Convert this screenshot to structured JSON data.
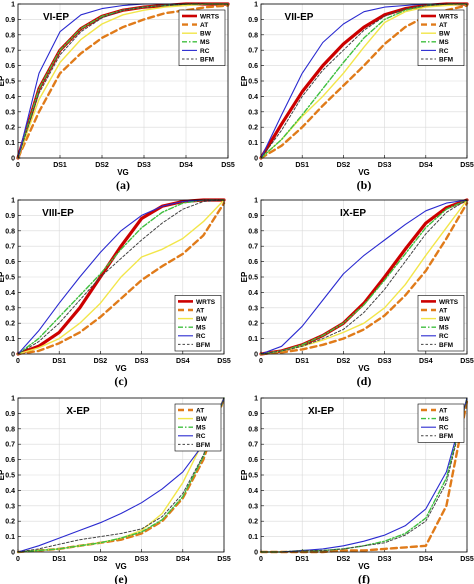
{
  "figure": {
    "series_styles": {
      "WRTS": {
        "color": "#cc0000",
        "dash": "",
        "width": 3.2
      },
      "AT": {
        "color": "#e07b1a",
        "dash": "6,4",
        "width": 2.4
      },
      "BW": {
        "color": "#f2e64a",
        "dash": "",
        "width": 1.4
      },
      "MS": {
        "color": "#3fbf3f",
        "dash": "5,2,1.5,2",
        "width": 1.4
      },
      "RC": {
        "color": "#2a2ad0",
        "dash": "",
        "width": 1.1
      },
      "BFM": {
        "color": "#444444",
        "dash": "2.5,2",
        "width": 1.0
      }
    }
  },
  "chart_data": [
    {
      "type": "line",
      "panel_label": "(a)",
      "title": "VI-EP",
      "xlabel": "VG",
      "ylabel": "EP",
      "categories": [
        "0",
        "DS1",
        "DS2",
        "DS3",
        "DS4",
        "DS5"
      ],
      "ylim": [
        0,
        1
      ],
      "yticks": [
        "0",
        "0.1",
        "0.2",
        "0.3",
        "0.4",
        "0.5",
        "0.6",
        "0.7",
        "0.8",
        "0.9",
        "1"
      ],
      "grid": true,
      "legend_position": "top-right",
      "x": [
        0,
        0.5,
        1,
        1.5,
        2,
        2.5,
        3,
        3.5,
        4,
        4.5,
        5
      ],
      "series": [
        {
          "name": "WRTS",
          "values": [
            0,
            0.45,
            0.7,
            0.84,
            0.92,
            0.96,
            0.98,
            0.99,
            1.0,
            1.0,
            1.0
          ]
        },
        {
          "name": "AT",
          "values": [
            0,
            0.3,
            0.55,
            0.68,
            0.78,
            0.85,
            0.9,
            0.94,
            0.96,
            0.98,
            0.99
          ]
        },
        {
          "name": "BW",
          "values": [
            0,
            0.38,
            0.62,
            0.77,
            0.87,
            0.93,
            0.96,
            0.98,
            0.99,
            1.0,
            1.0
          ]
        },
        {
          "name": "MS",
          "values": [
            0,
            0.45,
            0.7,
            0.84,
            0.92,
            0.96,
            0.98,
            0.99,
            1.0,
            1.0,
            1.0
          ]
        },
        {
          "name": "RC",
          "values": [
            0,
            0.55,
            0.82,
            0.93,
            0.97,
            0.99,
            1.0,
            1.0,
            1.0,
            1.0,
            1.0
          ]
        },
        {
          "name": "BFM",
          "values": [
            0,
            0.42,
            0.67,
            0.82,
            0.91,
            0.96,
            0.98,
            0.99,
            1.0,
            1.0,
            1.0
          ]
        }
      ]
    },
    {
      "type": "line",
      "panel_label": "(b)",
      "title": "VII-EP",
      "xlabel": "VG",
      "ylabel": "EP",
      "categories": [
        "0",
        "DS1",
        "DS2",
        "DS3",
        "DS4",
        "DS5"
      ],
      "ylim": [
        0,
        1
      ],
      "yticks": [
        "0",
        "0.1",
        "0.2",
        "0.3",
        "0.4",
        "0.5",
        "0.6",
        "0.7",
        "0.8",
        "0.9",
        "1"
      ],
      "grid": true,
      "legend_position": "top-right",
      "x": [
        0,
        0.5,
        1,
        1.5,
        2,
        2.5,
        3,
        3.5,
        4,
        4.5,
        5
      ],
      "series": [
        {
          "name": "WRTS",
          "values": [
            0,
            0.22,
            0.43,
            0.6,
            0.74,
            0.85,
            0.93,
            0.97,
            0.99,
            1.0,
            1.0
          ]
        },
        {
          "name": "AT",
          "values": [
            0,
            0.08,
            0.2,
            0.34,
            0.47,
            0.6,
            0.74,
            0.85,
            0.92,
            0.96,
            0.99
          ]
        },
        {
          "name": "BW",
          "values": [
            0,
            0.12,
            0.27,
            0.4,
            0.55,
            0.72,
            0.88,
            0.95,
            0.98,
            0.99,
            1.0
          ]
        },
        {
          "name": "MS",
          "values": [
            0,
            0.12,
            0.28,
            0.45,
            0.62,
            0.78,
            0.9,
            0.96,
            0.99,
            1.0,
            1.0
          ]
        },
        {
          "name": "RC",
          "values": [
            0,
            0.28,
            0.55,
            0.75,
            0.87,
            0.95,
            0.98,
            0.99,
            1.0,
            1.0,
            1.0
          ]
        },
        {
          "name": "BFM",
          "values": [
            0,
            0.18,
            0.4,
            0.57,
            0.7,
            0.83,
            0.92,
            0.97,
            0.99,
            1.0,
            1.0
          ]
        }
      ]
    },
    {
      "type": "line",
      "panel_label": "(c)",
      "title": "VIII-EP",
      "xlabel": "VG",
      "ylabel": "EP",
      "categories": [
        "0",
        "DS1",
        "DS2",
        "DS3",
        "DS4",
        "DS5"
      ],
      "ylim": [
        0,
        1
      ],
      "yticks": [
        "0",
        "0.1",
        "0.2",
        "0.3",
        "0.4",
        "0.5",
        "0.6",
        "0.7",
        "0.8",
        "0.9",
        "1"
      ],
      "grid": true,
      "legend_position": "bottom-right",
      "x": [
        0,
        0.5,
        1,
        1.5,
        2,
        2.5,
        3,
        3.5,
        4,
        4.5,
        5
      ],
      "series": [
        {
          "name": "WRTS",
          "values": [
            0,
            0.05,
            0.14,
            0.3,
            0.5,
            0.7,
            0.88,
            0.96,
            0.99,
            1.0,
            1.0
          ]
        },
        {
          "name": "AT",
          "values": [
            0,
            0.02,
            0.07,
            0.14,
            0.24,
            0.36,
            0.48,
            0.57,
            0.65,
            0.77,
            0.98
          ]
        },
        {
          "name": "BW",
          "values": [
            0,
            0.04,
            0.1,
            0.2,
            0.33,
            0.5,
            0.63,
            0.68,
            0.75,
            0.86,
            1.0
          ]
        },
        {
          "name": "MS",
          "values": [
            0,
            0.1,
            0.24,
            0.38,
            0.52,
            0.68,
            0.82,
            0.92,
            0.98,
            1.0,
            1.0
          ]
        },
        {
          "name": "RC",
          "values": [
            0,
            0.15,
            0.33,
            0.5,
            0.66,
            0.8,
            0.9,
            0.96,
            0.99,
            1.0,
            1.0
          ]
        },
        {
          "name": "BFM",
          "values": [
            0,
            0.08,
            0.2,
            0.35,
            0.5,
            0.62,
            0.74,
            0.85,
            0.94,
            0.99,
            1.0
          ]
        }
      ]
    },
    {
      "type": "line",
      "panel_label": "(d)",
      "title": "IX-EP",
      "xlabel": "VG",
      "ylabel": "EP",
      "categories": [
        "0",
        "DS1",
        "DS2",
        "DS3",
        "DS4",
        "DS5"
      ],
      "ylim": [
        0,
        1
      ],
      "yticks": [
        "0",
        "0.1",
        "0.2",
        "0.3",
        "0.4",
        "0.5",
        "0.6",
        "0.7",
        "0.8",
        "0.9",
        "1"
      ],
      "grid": true,
      "legend_position": "bottom-right",
      "x": [
        0,
        0.5,
        1,
        1.5,
        2,
        2.5,
        3,
        3.5,
        4,
        4.5,
        5
      ],
      "series": [
        {
          "name": "WRTS",
          "values": [
            0,
            0.02,
            0.06,
            0.12,
            0.2,
            0.33,
            0.5,
            0.68,
            0.85,
            0.95,
            1.0
          ]
        },
        {
          "name": "AT",
          "values": [
            0,
            0.01,
            0.03,
            0.06,
            0.1,
            0.16,
            0.25,
            0.38,
            0.54,
            0.75,
            0.98
          ]
        },
        {
          "name": "BW",
          "values": [
            0,
            0.02,
            0.05,
            0.09,
            0.14,
            0.2,
            0.3,
            0.45,
            0.64,
            0.82,
            1.0
          ]
        },
        {
          "name": "MS",
          "values": [
            0,
            0.02,
            0.06,
            0.12,
            0.2,
            0.32,
            0.48,
            0.65,
            0.82,
            0.94,
            1.0
          ]
        },
        {
          "name": "RC",
          "values": [
            0,
            0.05,
            0.18,
            0.35,
            0.52,
            0.64,
            0.74,
            0.84,
            0.93,
            0.98,
            1.0
          ]
        },
        {
          "name": "BFM",
          "values": [
            0,
            0.02,
            0.05,
            0.1,
            0.16,
            0.27,
            0.42,
            0.6,
            0.78,
            0.92,
            1.0
          ]
        }
      ]
    },
    {
      "type": "line",
      "panel_label": "(e)",
      "title": "X-EP",
      "xlabel": "VG",
      "ylabel": "EP",
      "categories": [
        "0",
        "DS1",
        "DS2",
        "DS3",
        "DS4",
        "DS5"
      ],
      "ylim": [
        0,
        1
      ],
      "yticks": [
        "0",
        "0.1",
        "0.2",
        "0.3",
        "0.4",
        "0.5",
        "0.6",
        "0.7",
        "0.8",
        "0.9",
        "1"
      ],
      "grid": true,
      "legend_position": "top-right",
      "x": [
        0,
        0.5,
        1,
        1.5,
        2,
        2.5,
        3,
        3.5,
        4,
        4.5,
        5
      ],
      "series": [
        {
          "name": "AT",
          "values": [
            0,
            0.01,
            0.02,
            0.04,
            0.06,
            0.08,
            0.12,
            0.2,
            0.35,
            0.6,
            1.0
          ]
        },
        {
          "name": "BW",
          "values": [
            0,
            0.01,
            0.02,
            0.04,
            0.06,
            0.09,
            0.14,
            0.25,
            0.45,
            0.72,
            1.0
          ]
        },
        {
          "name": "MS",
          "values": [
            0,
            0.01,
            0.02,
            0.04,
            0.06,
            0.09,
            0.13,
            0.21,
            0.36,
            0.62,
            1.0
          ]
        },
        {
          "name": "RC",
          "values": [
            0,
            0.04,
            0.09,
            0.14,
            0.19,
            0.25,
            0.32,
            0.41,
            0.52,
            0.7,
            1.0
          ]
        },
        {
          "name": "BFM",
          "values": [
            0,
            0.02,
            0.05,
            0.08,
            0.1,
            0.12,
            0.15,
            0.23,
            0.38,
            0.63,
            1.0
          ]
        }
      ]
    },
    {
      "type": "line",
      "panel_label": "(f)",
      "title": "XI-EP",
      "xlabel": "VG",
      "ylabel": "EP",
      "categories": [
        "0",
        "DS1",
        "DS2",
        "DS3",
        "DS4",
        "DS5"
      ],
      "ylim": [
        0,
        1
      ],
      "yticks": [
        "0",
        "0.1",
        "0.2",
        "0.3",
        "0.4",
        "0.5",
        "0.6",
        "0.7",
        "0.8",
        "0.9",
        "1"
      ],
      "grid": true,
      "legend_position": "top-right",
      "x": [
        0,
        0.5,
        1,
        1.5,
        2,
        2.5,
        3,
        3.5,
        4,
        4.5,
        5
      ],
      "series": [
        {
          "name": "AT",
          "values": [
            0,
            0.0,
            0.0,
            0.0,
            0.01,
            0.01,
            0.02,
            0.03,
            0.04,
            0.3,
            0.98
          ]
        },
        {
          "name": "MS",
          "values": [
            0,
            0.0,
            0.01,
            0.01,
            0.02,
            0.04,
            0.07,
            0.12,
            0.22,
            0.48,
            1.0
          ]
        },
        {
          "name": "RC",
          "values": [
            0,
            0.0,
            0.01,
            0.02,
            0.04,
            0.07,
            0.11,
            0.17,
            0.28,
            0.52,
            1.0
          ]
        },
        {
          "name": "BFM",
          "values": [
            0,
            0.0,
            0.01,
            0.01,
            0.02,
            0.04,
            0.06,
            0.11,
            0.2,
            0.45,
            1.0
          ]
        }
      ]
    }
  ]
}
